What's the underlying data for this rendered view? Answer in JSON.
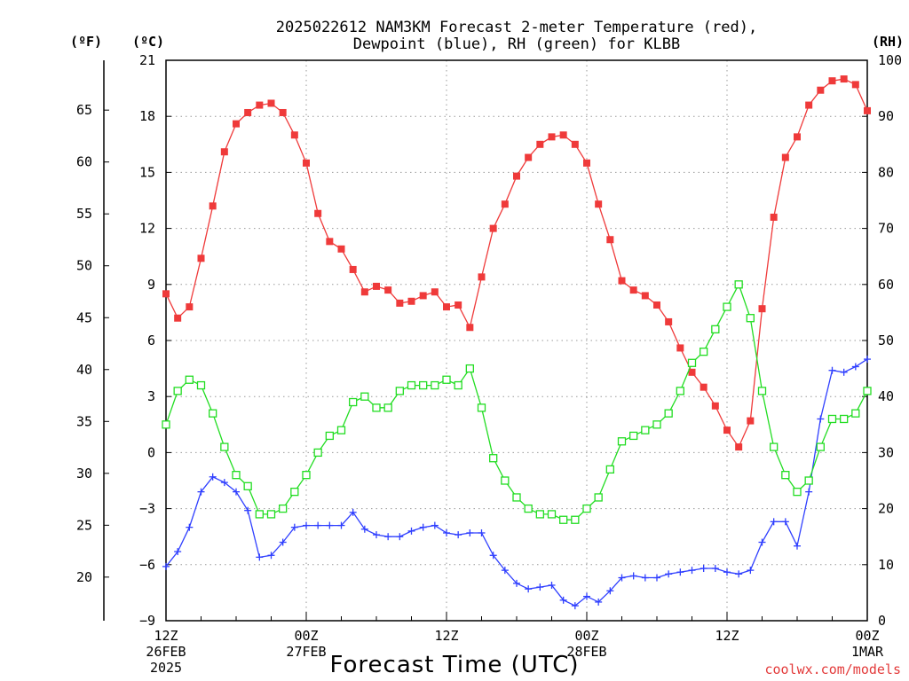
{
  "chart_data": {
    "type": "line",
    "title_lines": [
      "2025022612 NAM3KM Forecast 2-meter Temperature (red),",
      "Dewpoint (blue), RH (green) for KLBB"
    ],
    "xlabel": "Forecast Time (UTC)",
    "credit": "coolwx.com/models",
    "units": {
      "f": "(ºF)",
      "c": "(ºC)",
      "rh": "(RH)"
    },
    "x_hours_range": [
      0,
      60
    ],
    "x_ticks": [
      {
        "hour": 0,
        "lines": [
          "12Z",
          "26FEB",
          "2025"
        ]
      },
      {
        "hour": 12,
        "lines": [
          "00Z",
          "27FEB"
        ]
      },
      {
        "hour": 24,
        "lines": [
          "12Z"
        ]
      },
      {
        "hour": 36,
        "lines": [
          "00Z",
          "28FEB"
        ]
      },
      {
        "hour": 48,
        "lines": [
          "12Z"
        ]
      },
      {
        "hour": 60,
        "lines": [
          "00Z",
          "1MAR"
        ]
      }
    ],
    "celsius_axis": {
      "ylim": [
        -9,
        21
      ],
      "ticks": [
        "21",
        "18",
        "15",
        "12",
        "9",
        "6",
        "3",
        "0",
        "−3",
        "−6",
        "−9"
      ]
    },
    "fahrenheit_axis": {
      "ylim": [
        15.8,
        69.8
      ],
      "ticks": [
        "65",
        "60",
        "55",
        "50",
        "45",
        "40",
        "35",
        "30",
        "25",
        "20"
      ]
    },
    "rh_axis": {
      "ylim": [
        0,
        100
      ],
      "ticks": [
        "100",
        "90",
        "80",
        "70",
        "60",
        "50",
        "40",
        "30",
        "20",
        "10",
        "0"
      ]
    },
    "grid": true,
    "series": [
      {
        "axis": "celsius",
        "color": "#ef3a3a",
        "marker": "filled-square",
        "x": [
          0,
          1,
          2,
          3,
          4,
          5,
          6,
          7,
          8,
          9,
          10,
          11,
          12,
          13,
          14,
          15,
          16,
          17,
          18,
          19,
          20,
          21,
          22,
          23,
          24,
          25,
          26,
          27,
          28,
          29,
          30,
          31,
          32,
          33,
          34,
          35,
          36,
          37,
          38,
          39,
          40,
          41,
          42,
          43,
          44,
          45,
          46,
          47,
          48,
          49,
          50,
          51,
          52,
          53,
          54,
          55,
          56,
          57,
          58,
          59,
          60
        ],
        "values": [
          8.5,
          7.2,
          7.8,
          10.4,
          13.2,
          16.1,
          17.6,
          18.2,
          18.6,
          18.7,
          18.2,
          17.0,
          15.5,
          12.8,
          11.3,
          10.9,
          9.8,
          8.6,
          8.9,
          8.7,
          8.0,
          8.1,
          8.4,
          8.6,
          7.8,
          7.9,
          6.7,
          9.4,
          12.0,
          13.3,
          14.8,
          15.8,
          16.5,
          16.9,
          17.0,
          16.5,
          15.5,
          13.3,
          11.4,
          9.2,
          8.7,
          8.4,
          7.9,
          7.0,
          5.6,
          4.3,
          3.5,
          2.5,
          1.2,
          0.3,
          1.7,
          7.7,
          12.6,
          15.8,
          16.9,
          18.6,
          19.4,
          19.9,
          20.0,
          19.7,
          18.3
        ]
      },
      {
        "axis": "celsius",
        "color": "#2f3fff",
        "marker": "plus",
        "x": [
          0,
          1,
          2,
          3,
          4,
          5,
          6,
          7,
          8,
          9,
          10,
          11,
          12,
          13,
          14,
          15,
          16,
          17,
          18,
          19,
          20,
          21,
          22,
          23,
          24,
          25,
          26,
          27,
          28,
          29,
          30,
          31,
          32,
          33,
          34,
          35,
          36,
          37,
          38,
          39,
          40,
          41,
          42,
          43,
          44,
          45,
          46,
          47,
          48,
          49,
          50,
          51,
          52,
          53,
          54,
          55,
          56,
          57,
          58,
          59,
          60
        ],
        "values": [
          -6.1,
          -5.3,
          -4.0,
          -2.1,
          -1.3,
          -1.6,
          -2.1,
          -3.1,
          -5.6,
          -5.5,
          -4.8,
          -4.0,
          -3.9,
          -3.9,
          -3.9,
          -3.9,
          -3.2,
          -4.1,
          -4.4,
          -4.5,
          -4.5,
          -4.2,
          -4.0,
          -3.9,
          -4.3,
          -4.4,
          -4.3,
          -4.3,
          -5.5,
          -6.3,
          -7.0,
          -7.3,
          -7.2,
          -7.1,
          -7.9,
          -8.2,
          -7.7,
          -8.0,
          -7.4,
          -6.7,
          -6.6,
          -6.7,
          -6.7,
          -6.5,
          -6.4,
          -6.3,
          -6.2,
          -6.2,
          -6.4,
          -6.5,
          -6.3,
          -4.8,
          -3.7,
          -3.7,
          -5.0,
          -2.1,
          1.8,
          4.4,
          4.3,
          4.6,
          5.0
        ]
      },
      {
        "axis": "rh",
        "color": "#22dd22",
        "marker": "open-square",
        "x": [
          0,
          1,
          2,
          3,
          4,
          5,
          6,
          7,
          8,
          9,
          10,
          11,
          12,
          13,
          14,
          15,
          16,
          17,
          18,
          19,
          20,
          21,
          22,
          23,
          24,
          25,
          26,
          27,
          28,
          29,
          30,
          31,
          32,
          33,
          34,
          35,
          36,
          37,
          38,
          39,
          40,
          41,
          42,
          43,
          44,
          45,
          46,
          47,
          48,
          49,
          50,
          51,
          52,
          53,
          54,
          55,
          56,
          57,
          58,
          59,
          60
        ],
        "values": [
          35,
          41,
          43,
          42,
          37,
          31,
          26,
          24,
          19,
          19,
          20,
          23,
          26,
          30,
          33,
          34,
          39,
          40,
          38,
          38,
          41,
          42,
          42,
          42,
          43,
          42,
          45,
          38,
          29,
          25,
          22,
          20,
          19,
          19,
          18,
          18,
          20,
          22,
          27,
          32,
          33,
          34,
          35,
          37,
          41,
          46,
          48,
          52,
          56,
          60,
          54,
          41,
          31,
          26,
          23,
          25,
          31,
          36,
          36,
          37,
          41
        ]
      }
    ]
  }
}
